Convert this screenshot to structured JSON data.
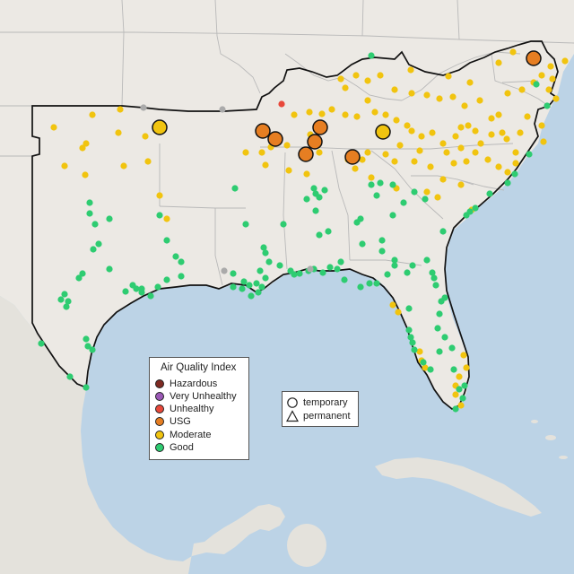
{
  "legend": {
    "title": "Air Quality Index",
    "categories": [
      {
        "label": "Hazardous",
        "color": "#7e2a22"
      },
      {
        "label": "Very Unhealthy",
        "color": "#9b59b6"
      },
      {
        "label": "Unhealthy",
        "color": "#e8483a"
      },
      {
        "label": "USG",
        "color": "#e67e22"
      },
      {
        "label": "Moderate",
        "color": "#f1c40f"
      },
      {
        "label": "Good",
        "color": "#2ecc71"
      }
    ]
  },
  "shape_legend": {
    "items": [
      {
        "label": "temporary",
        "icon": "circle-icon"
      },
      {
        "label": "permanent",
        "icon": "triangle-icon"
      }
    ]
  },
  "colors": {
    "ocean": "#bcd3e6",
    "land": "#ece9e4",
    "state_border": "#b9b9b9",
    "region_outline": "#111111",
    "no_data": "#aaaaaa"
  }
}
